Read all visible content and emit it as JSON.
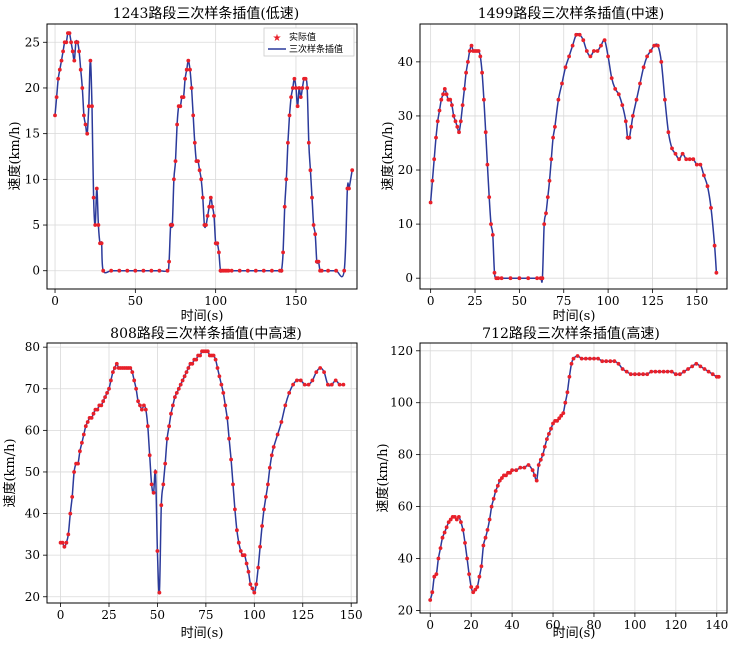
{
  "chart_data": [
    {
      "type": "line",
      "title": "1243路段三次样条插值(低速)",
      "xlabel": "时间(s)",
      "ylabel": "速度(km/h)",
      "xlim": [
        -5,
        188
      ],
      "ylim": [
        -2,
        27
      ],
      "xticks": [
        0,
        50,
        100,
        150
      ],
      "yticks": [
        0,
        5,
        10,
        15,
        20,
        25
      ],
      "grid": true,
      "legend": {
        "position": "top-right",
        "entries": [
          "实际值",
          "三次样条插值"
        ]
      },
      "series": [
        {
          "name": "实际值",
          "kind": "markers",
          "color": "#e8202a"
        },
        {
          "name": "三次样条插值",
          "kind": "line",
          "color": "#2b3a9b"
        }
      ],
      "x": [
        0,
        1,
        2,
        3,
        4,
        5,
        6,
        7,
        8,
        9,
        10,
        11,
        12,
        13,
        14,
        15,
        16,
        17,
        18,
        19,
        20,
        21,
        22,
        23,
        24,
        25,
        26,
        27,
        28,
        29,
        30,
        35,
        40,
        45,
        50,
        55,
        60,
        65,
        70,
        71,
        72,
        73,
        74,
        75,
        76,
        77,
        78,
        79,
        80,
        81,
        82,
        83,
        84,
        85,
        86,
        87,
        88,
        89,
        90,
        91,
        92,
        93,
        94,
        95,
        96,
        97,
        98,
        99,
        100,
        101,
        102,
        103,
        104,
        105,
        106,
        107,
        108,
        110,
        115,
        120,
        125,
        130,
        135,
        140,
        141,
        142,
        143,
        144,
        145,
        146,
        147,
        148,
        149,
        150,
        151,
        152,
        153,
        154,
        155,
        156,
        157,
        158,
        159,
        160,
        161,
        162,
        163,
        164,
        165,
        166,
        170,
        175,
        180,
        182,
        183,
        185
      ],
      "y": [
        17,
        19,
        21,
        22,
        23,
        24,
        25,
        25,
        26,
        26,
        25,
        24,
        23,
        25,
        25,
        24,
        22,
        20,
        17,
        16,
        15,
        18,
        23,
        18,
        8,
        5,
        9,
        5,
        3,
        3,
        0,
        0,
        0,
        0,
        0,
        0,
        0,
        0,
        0,
        1,
        5,
        5,
        10,
        12,
        16,
        18,
        18,
        19,
        19,
        21,
        22,
        23,
        22,
        20,
        17,
        14,
        12,
        12,
        11,
        10,
        8,
        5,
        5,
        6,
        7,
        8,
        7,
        6,
        3,
        3,
        2,
        0,
        0,
        0,
        0,
        0,
        0,
        0,
        0,
        0,
        0,
        0,
        0,
        0,
        0,
        2,
        7,
        10,
        14,
        17,
        19,
        20,
        21,
        20,
        18,
        20,
        19,
        20,
        21,
        21,
        20,
        14,
        11,
        8,
        5,
        4,
        1,
        1,
        0,
        0,
        0,
        0,
        0,
        9,
        9,
        11
      ]
    },
    {
      "type": "line",
      "title": "1499路段三次样条插值(中速)",
      "xlabel": "时间(s)",
      "ylabel": "速度(km/h)",
      "xlim": [
        -6,
        167
      ],
      "ylim": [
        -2,
        47
      ],
      "xticks": [
        0,
        25,
        50,
        75,
        100,
        125,
        150
      ],
      "yticks": [
        0,
        10,
        20,
        30,
        40
      ],
      "grid": true,
      "x": [
        0,
        1,
        2,
        3,
        4,
        5,
        6,
        7,
        8,
        9,
        10,
        11,
        12,
        13,
        14,
        15,
        16,
        17,
        18,
        19,
        20,
        21,
        22,
        23,
        24,
        25,
        26,
        27,
        28,
        29,
        30,
        31,
        32,
        33,
        34,
        35,
        36,
        37,
        38,
        40,
        45,
        50,
        55,
        60,
        62,
        63,
        64,
        65,
        66,
        67,
        68,
        69,
        70,
        72,
        74,
        76,
        78,
        80,
        82,
        84,
        86,
        88,
        90,
        92,
        94,
        96,
        98,
        100,
        102,
        104,
        106,
        108,
        110,
        111,
        112,
        113,
        114,
        116,
        118,
        120,
        122,
        124,
        126,
        128,
        130,
        132,
        134,
        136,
        138,
        140,
        142,
        144,
        146,
        148,
        150,
        152,
        154,
        156,
        158,
        160,
        161
      ],
      "y": [
        14,
        18,
        22,
        26,
        29,
        31,
        33,
        34,
        35,
        34,
        33,
        33,
        32,
        30,
        29,
        28,
        27,
        29,
        32,
        35,
        38,
        40,
        42,
        43,
        42,
        42,
        42,
        42,
        41,
        38,
        33,
        27,
        21,
        15,
        10,
        8,
        1,
        0,
        0,
        0,
        0,
        0,
        0,
        0,
        0,
        0,
        10,
        12,
        15,
        18,
        22,
        26,
        28,
        33,
        36,
        39,
        41,
        43,
        45,
        45,
        44,
        42,
        41,
        42,
        42,
        43,
        44,
        41,
        37,
        35,
        34,
        32,
        29,
        26,
        26,
        28,
        30,
        33,
        36,
        39,
        41,
        42,
        43,
        43,
        40,
        33,
        27,
        24,
        23,
        22,
        23,
        22,
        22,
        22,
        21,
        21,
        19,
        17,
        13,
        6,
        1
      ]
    },
    {
      "type": "line",
      "title": "808路段三次样条插值(中高速)",
      "xlabel": "时间(s)",
      "ylabel": "速度(km/h)",
      "xlim": [
        -7,
        153
      ],
      "ylim": [
        18.5,
        81
      ],
      "xticks": [
        0,
        25,
        50,
        75,
        100,
        125,
        150
      ],
      "yticks": [
        20,
        30,
        40,
        50,
        60,
        70,
        80
      ],
      "grid": true,
      "x": [
        0,
        1,
        2,
        3,
        4,
        5,
        6,
        7,
        8,
        9,
        10,
        11,
        12,
        13,
        14,
        15,
        16,
        17,
        18,
        19,
        20,
        21,
        22,
        23,
        24,
        25,
        26,
        27,
        28,
        29,
        30,
        31,
        32,
        33,
        34,
        35,
        36,
        37,
        38,
        39,
        40,
        41,
        42,
        43,
        44,
        45,
        46,
        47,
        48,
        49,
        50,
        51,
        52,
        53,
        54,
        55,
        56,
        57,
        58,
        59,
        60,
        61,
        62,
        63,
        64,
        65,
        66,
        67,
        68,
        69,
        70,
        71,
        72,
        73,
        74,
        75,
        76,
        77,
        78,
        79,
        80,
        81,
        82,
        83,
        84,
        85,
        86,
        87,
        88,
        89,
        90,
        91,
        92,
        93,
        94,
        95,
        96,
        97,
        98,
        99,
        100,
        101,
        102,
        103,
        104,
        105,
        106,
        107,
        108,
        109,
        110,
        112,
        114,
        116,
        118,
        120,
        122,
        124,
        126,
        128,
        130,
        132,
        134,
        136,
        138,
        140,
        142,
        144,
        146
      ],
      "y": [
        33,
        33,
        32,
        33,
        35,
        40,
        44,
        50,
        52,
        52,
        55,
        57,
        59,
        61,
        62,
        63,
        63,
        64,
        65,
        65,
        66,
        66,
        67,
        68,
        69,
        70,
        72,
        74,
        75,
        76,
        75,
        75,
        75,
        75,
        75,
        75,
        75,
        74,
        72,
        70,
        67,
        66,
        65,
        66,
        65,
        61,
        54,
        47,
        45,
        50,
        31,
        21,
        42,
        47,
        52,
        58,
        61,
        64,
        66,
        68,
        69,
        70,
        71,
        72,
        73,
        74,
        75,
        76,
        76,
        77,
        77,
        78,
        78,
        79,
        79,
        79,
        79,
        78,
        78,
        78,
        77,
        75,
        73,
        71,
        69,
        66,
        63,
        58,
        53,
        47,
        41,
        36,
        33,
        31,
        30,
        30,
        28,
        26,
        23,
        22,
        21,
        23,
        27,
        32,
        37,
        41,
        44,
        47,
        51,
        54,
        56,
        59,
        62,
        66,
        69,
        71,
        72,
        72,
        71,
        71,
        72,
        74,
        75,
        74,
        71,
        71,
        72,
        71,
        71
      ]
    },
    {
      "type": "line",
      "title": "712路段三次样条插值(高速)",
      "xlabel": "时间(s)",
      "ylabel": "速度(km/h)",
      "xlim": [
        -5,
        145
      ],
      "ylim": [
        19,
        123
      ],
      "xticks": [
        0,
        20,
        40,
        60,
        80,
        100,
        120,
        140
      ],
      "yticks": [
        20,
        40,
        60,
        80,
        100,
        120
      ],
      "grid": true,
      "x": [
        0,
        1,
        2,
        3,
        4,
        5,
        6,
        7,
        8,
        9,
        10,
        11,
        12,
        13,
        14,
        15,
        16,
        17,
        18,
        19,
        20,
        21,
        22,
        23,
        24,
        25,
        26,
        27,
        28,
        29,
        30,
        31,
        32,
        33,
        34,
        35,
        36,
        37,
        38,
        39,
        40,
        42,
        44,
        46,
        48,
        50,
        51,
        52,
        53,
        54,
        55,
        56,
        57,
        58,
        59,
        60,
        61,
        62,
        63,
        64,
        65,
        66,
        67,
        68,
        69,
        70,
        72,
        74,
        76,
        78,
        80,
        82,
        84,
        86,
        88,
        90,
        92,
        94,
        96,
        98,
        100,
        102,
        104,
        106,
        108,
        110,
        112,
        114,
        116,
        118,
        120,
        122,
        124,
        126,
        128,
        130,
        132,
        134,
        136,
        138,
        140,
        141
      ],
      "y": [
        24,
        27,
        33,
        34,
        40,
        44,
        48,
        50,
        52,
        54,
        55,
        56,
        56,
        55,
        56,
        54,
        51,
        46,
        40,
        34,
        29,
        27,
        28,
        29,
        33,
        37,
        45,
        48,
        51,
        55,
        60,
        63,
        66,
        68,
        70,
        71,
        72,
        72,
        73,
        73,
        74,
        74,
        75,
        75,
        76,
        74,
        72,
        70,
        76,
        78,
        80,
        83,
        86,
        88,
        90,
        92,
        93,
        93,
        94,
        95,
        96,
        100,
        104,
        110,
        115,
        117,
        118,
        117,
        117,
        117,
        117,
        117,
        116,
        116,
        116,
        116,
        115,
        113,
        112,
        111,
        111,
        111,
        111,
        111,
        112,
        112,
        112,
        112,
        112,
        112,
        111,
        111,
        112,
        113,
        114,
        115,
        114,
        113,
        112,
        111,
        110,
        110
      ]
    }
  ]
}
